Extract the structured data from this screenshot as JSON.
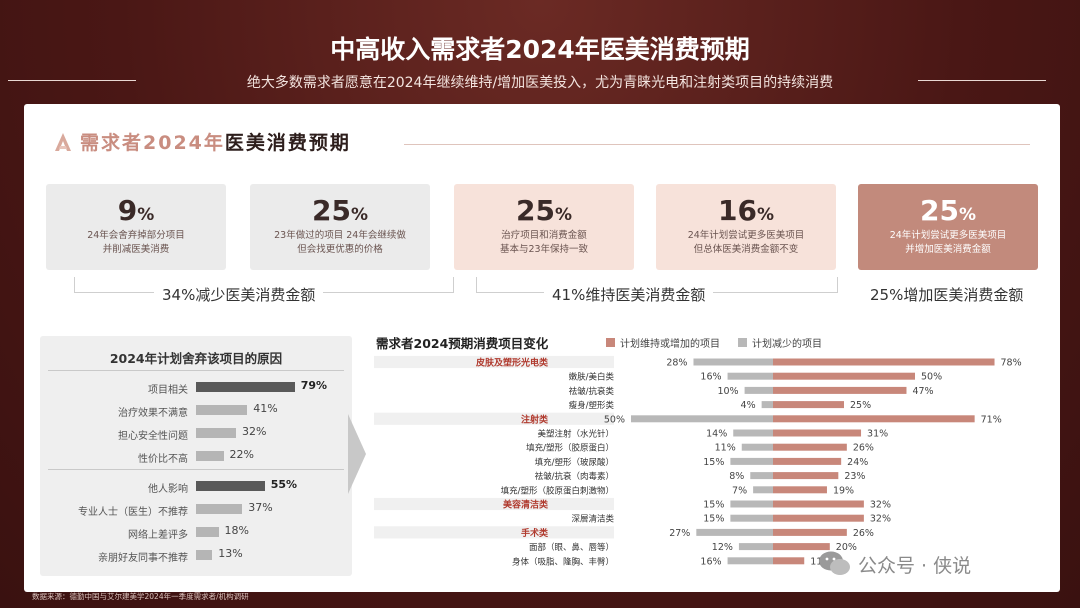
{
  "header": {
    "title": "中高收入需求者2024年医美消费预期",
    "subtitle": "绝大多数需求者愿意在2024年继续维持/增加医美投入，尤为青睐光电和注射类项目的持续消费"
  },
  "section": {
    "title_a": "需求者2024年",
    "title_b": "医美消费预期"
  },
  "cards": [
    {
      "pct": "9",
      "unit": "%",
      "line1": "24年会舍弃掉部分项目",
      "line2": "并削减医美消费"
    },
    {
      "pct": "25",
      "unit": "%",
      "line1": "23年做过的项目 24年会继续做",
      "line2": "但会找更优惠的价格"
    },
    {
      "pct": "25",
      "unit": "%",
      "line1": "治疗项目和消费金额",
      "line2": "基本与23年保持一致"
    },
    {
      "pct": "16",
      "unit": "%",
      "line1": "24年计划尝试更多医美项目",
      "line2": "但总体医美消费金额不变"
    },
    {
      "pct": "25",
      "unit": "%",
      "line1": "24年计划尝试更多医美项目",
      "line2": "并增加医美消费金额"
    }
  ],
  "groups": [
    "34%减少医美消费金额",
    "41%维持医美消费金额",
    "25%增加医美消费金额"
  ],
  "reasons": {
    "title": "2024年计划舍弃该项目的原因",
    "items": [
      {
        "label": "项目相关",
        "value": 79,
        "text": "79%",
        "highlight": true
      },
      {
        "label": "治疗效果不满意",
        "value": 41,
        "text": "41%",
        "highlight": false
      },
      {
        "label": "担心安全性问题",
        "value": 32,
        "text": "32%",
        "highlight": false
      },
      {
        "label": "性价比不高",
        "value": 22,
        "text": "22%",
        "highlight": false
      },
      {
        "label": "他人影响",
        "value": 55,
        "text": "55%",
        "highlight": true
      },
      {
        "label": "专业人士（医生）不推荐",
        "value": 37,
        "text": "37%",
        "highlight": false
      },
      {
        "label": "网络上差评多",
        "value": 18,
        "text": "18%",
        "highlight": false
      },
      {
        "label": "亲朋好友同事不推荐",
        "value": 13,
        "text": "13%",
        "highlight": false
      }
    ]
  },
  "chart_data": {
    "type": "bar",
    "title": "需求者2024预期消费项目变化",
    "legend": [
      {
        "name": "计划维持或增加的项目",
        "color": "#c8877a"
      },
      {
        "name": "计划减少的项目",
        "color": "#b8b8b8"
      }
    ],
    "rows": [
      {
        "label": "皮肤及塑形光电类",
        "category": true,
        "decrease": 28,
        "increase": 78
      },
      {
        "label": "嫩肤/美白类",
        "category": false,
        "decrease": 16,
        "increase": 50
      },
      {
        "label": "祛皱/抗衰类",
        "category": false,
        "decrease": 10,
        "increase": 47
      },
      {
        "label": "瘦身/塑形类",
        "category": false,
        "decrease": 4,
        "increase": 25
      },
      {
        "label": "注射类",
        "category": true,
        "decrease": 50,
        "increase": 71
      },
      {
        "label": "美塑注射（水光针）",
        "category": false,
        "decrease": 14,
        "increase": 31
      },
      {
        "label": "填充/塑形（胶原蛋白）",
        "category": false,
        "decrease": 11,
        "increase": 26
      },
      {
        "label": "填充/塑形（玻尿酸）",
        "category": false,
        "decrease": 15,
        "increase": 24
      },
      {
        "label": "祛皱/抗衰（肉毒素）",
        "category": false,
        "decrease": 8,
        "increase": 23
      },
      {
        "label": "填充/塑形（胶原蛋白刺激物）",
        "category": false,
        "decrease": 7,
        "increase": 19
      },
      {
        "label": "美容清洁类",
        "category": true,
        "decrease": 15,
        "increase": 32
      },
      {
        "label": "深層清洁类",
        "category": false,
        "decrease": 15,
        "increase": 32
      },
      {
        "label": "手术类",
        "category": true,
        "decrease": 27,
        "increase": 26
      },
      {
        "label": "面部（眼、鼻、唇等）",
        "category": false,
        "decrease": 12,
        "increase": 20
      },
      {
        "label": "身体（吸脂、隆胸、丰臀）",
        "category": false,
        "decrease": 16,
        "increase": 11
      }
    ]
  },
  "footer": {
    "source": "数据来源：德勤中国与艾尔建美学2024年一季度需求者/机构调研"
  },
  "watermark": {
    "text": "公众号 · 侠说",
    "icon": "wechat-icon"
  }
}
